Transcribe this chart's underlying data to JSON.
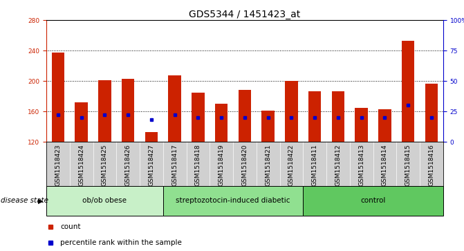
{
  "title": "GDS5344 / 1451423_at",
  "samples": [
    "GSM1518423",
    "GSM1518424",
    "GSM1518425",
    "GSM1518426",
    "GSM1518427",
    "GSM1518417",
    "GSM1518418",
    "GSM1518419",
    "GSM1518420",
    "GSM1518421",
    "GSM1518422",
    "GSM1518411",
    "GSM1518412",
    "GSM1518413",
    "GSM1518414",
    "GSM1518415",
    "GSM1518416"
  ],
  "counts": [
    237,
    172,
    201,
    203,
    133,
    207,
    185,
    170,
    188,
    161,
    200,
    186,
    186,
    165,
    163,
    253,
    196
  ],
  "percentiles": [
    22,
    20,
    22,
    22,
    18,
    22,
    20,
    20,
    20,
    20,
    20,
    20,
    20,
    20,
    20,
    30,
    20
  ],
  "groups": [
    {
      "label": "ob/ob obese",
      "start": 0,
      "end": 5,
      "color": "#c8f0c8"
    },
    {
      "label": "streptozotocin-induced diabetic",
      "start": 5,
      "end": 11,
      "color": "#90e090"
    },
    {
      "label": "control",
      "start": 11,
      "end": 17,
      "color": "#60c860"
    }
  ],
  "ymin": 120,
  "ymax": 280,
  "yticks": [
    120,
    160,
    200,
    240,
    280
  ],
  "right_yticks": [
    0,
    25,
    50,
    75,
    100
  ],
  "bar_color": "#cc2200",
  "percentile_color": "#0000cc",
  "bar_width": 0.55,
  "sample_bg_color": "#d0d0d0",
  "title_fontsize": 10,
  "tick_fontsize": 6.5,
  "group_label_fontsize": 7.5,
  "disease_state_fontsize": 7.5
}
